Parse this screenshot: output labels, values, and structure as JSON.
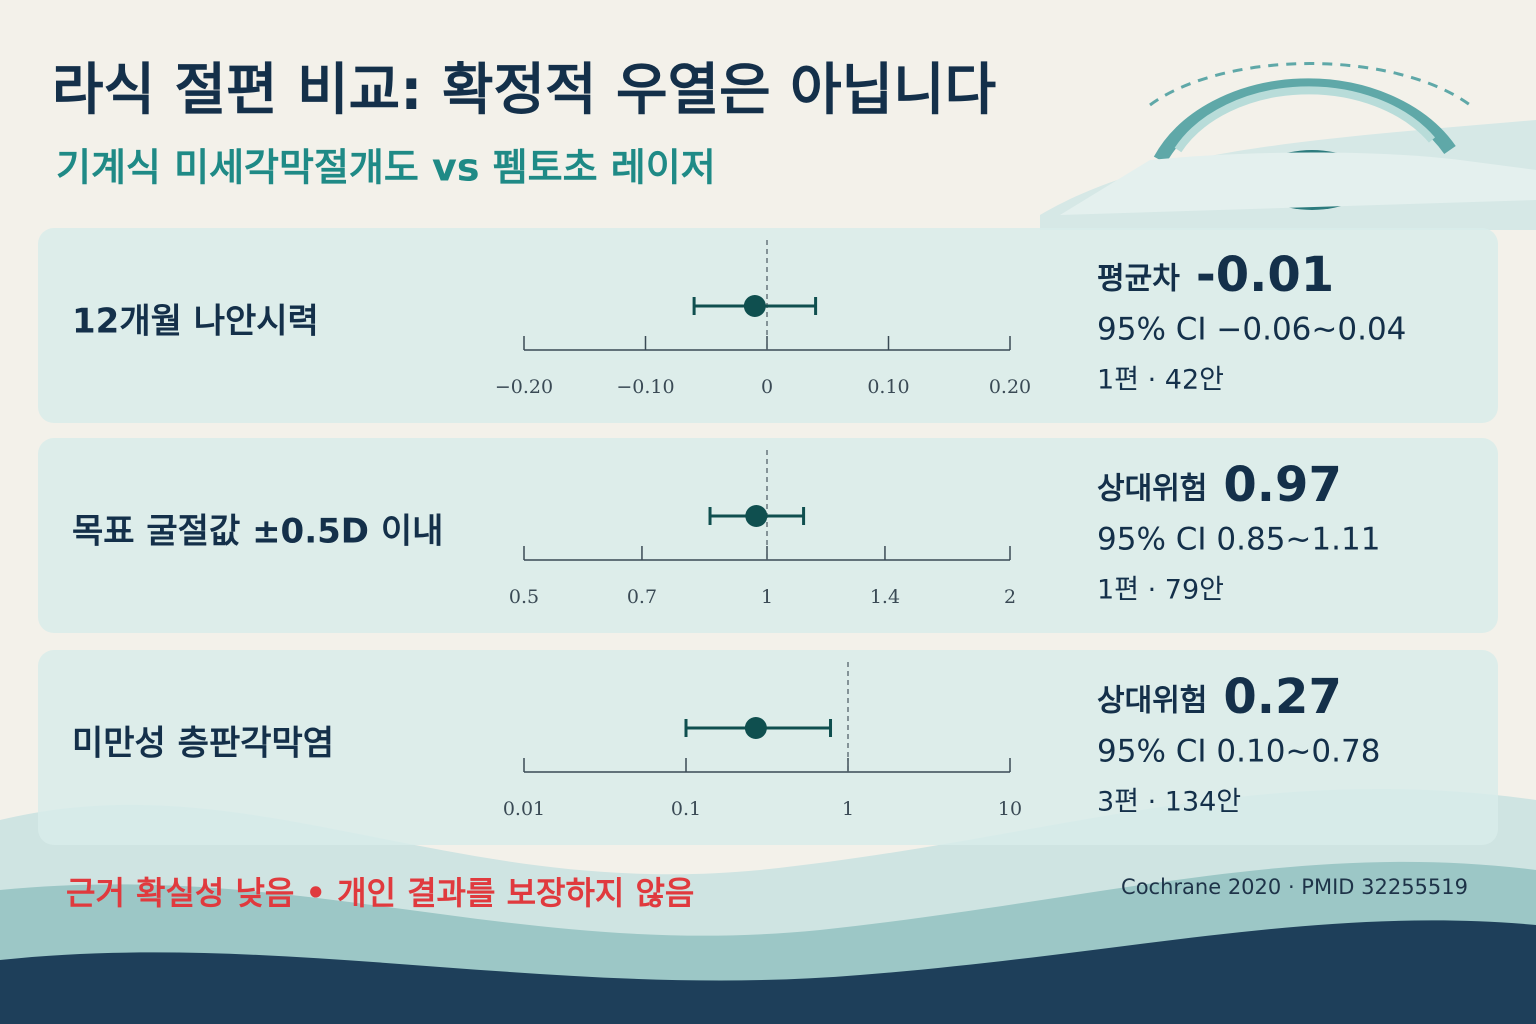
{
  "title": "라식 절편 비교: 확정적 우열은 아닙니다",
  "subtitle": "기계식 미세각막절개도 vs 펨토초 레이저",
  "footer": "근거 확실성 낮음 • 개인 결과를 보장하지 않음",
  "source": "Cochrane 2020 · PMID 32255519",
  "chart_data": [
    {
      "type": "forest",
      "title": "12개월 나안시력",
      "stat_label": "평균차",
      "value": -0.01,
      "value_label": "-0.01",
      "ci": [
        -0.06,
        0.04
      ],
      "ci_text": "95% CI −0.06~0.04",
      "studies": "1편 · 42안",
      "log": false,
      "null_line": 0,
      "xlim": [
        -0.2,
        0.2
      ],
      "xticks": [
        {
          "value": -0.2,
          "label": "−0.20"
        },
        {
          "value": -0.1,
          "label": "−0.10"
        },
        0,
        {
          "value": 0.1,
          "label": "0.10"
        },
        {
          "value": 0.2,
          "label": "0.20"
        }
      ],
      "color": "#0f4f4f"
    },
    {
      "type": "forest",
      "title": "목표 굴절값 ±0.5D 이내",
      "stat_label": "상대위험",
      "value": 0.97,
      "ci": [
        0.85,
        1.11
      ],
      "ci_text": "95% CI 0.85~1.11",
      "studies": "1편 · 79안",
      "log": true,
      "null_line": 1,
      "xlim": [
        0.5,
        2
      ],
      "xticks": [
        0.5,
        0.7,
        1,
        1.4,
        2
      ],
      "color": "#0f4f4f"
    },
    {
      "type": "forest",
      "title": "미만성 층판각막염",
      "stat_label": "상대위험",
      "value": 0.27,
      "ci": [
        0.1,
        0.78
      ],
      "ci_text": "95% CI 0.10~0.78",
      "studies": "3편 · 134안",
      "log": true,
      "null_line": 1,
      "xlim": [
        0.01,
        10
      ],
      "xticks": [
        0.01,
        0.1,
        1,
        10
      ],
      "color": "#0f4f4f"
    }
  ]
}
